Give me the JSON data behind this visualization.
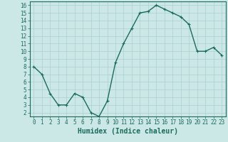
{
  "x": [
    0,
    1,
    2,
    3,
    4,
    5,
    6,
    7,
    8,
    9,
    10,
    11,
    12,
    13,
    14,
    15,
    16,
    17,
    18,
    19,
    20,
    21,
    22,
    23
  ],
  "y": [
    8.0,
    7.0,
    4.5,
    3.0,
    3.0,
    4.5,
    4.0,
    2.0,
    1.5,
    3.5,
    8.5,
    11.0,
    13.0,
    15.0,
    15.2,
    16.0,
    15.5,
    15.0,
    14.5,
    13.5,
    10.0,
    10.0,
    10.5,
    9.5
  ],
  "line_color": "#1a6b5a",
  "marker": "+",
  "marker_size": 3.5,
  "marker_linewidth": 0.8,
  "bg_color": "#cce8e6",
  "grid_color": "#aad0ce",
  "xlabel": "Humidex (Indice chaleur)",
  "xlim": [
    -0.5,
    23.5
  ],
  "ylim": [
    1.5,
    16.5
  ],
  "yticks": [
    2,
    3,
    4,
    5,
    6,
    7,
    8,
    9,
    10,
    11,
    12,
    13,
    14,
    15,
    16
  ],
  "xticks": [
    0,
    1,
    2,
    3,
    4,
    5,
    6,
    7,
    8,
    9,
    10,
    11,
    12,
    13,
    14,
    15,
    16,
    17,
    18,
    19,
    20,
    21,
    22,
    23
  ],
  "tick_label_fontsize": 5.5,
  "xlabel_fontsize": 7.0,
  "axis_color": "#1a6b5a",
  "line_width": 1.0,
  "spine_color": "#1a6b5a"
}
